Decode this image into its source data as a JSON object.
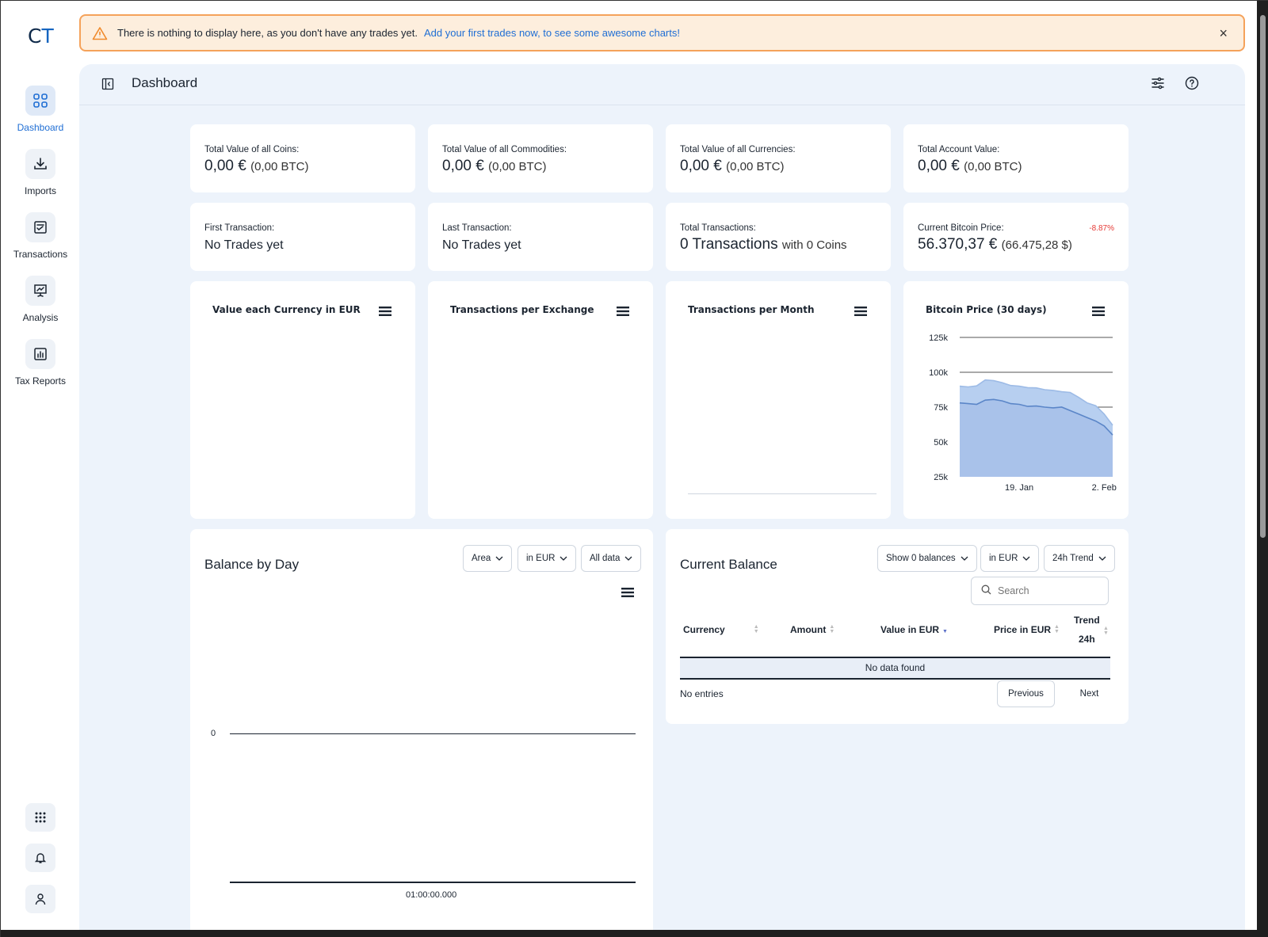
{
  "app": {
    "logo_c": "C",
    "logo_t": "T"
  },
  "sidebar": {
    "items": [
      {
        "label": "Dashboard",
        "icon": "grid-icon",
        "active": true
      },
      {
        "label": "Imports",
        "icon": "download-icon"
      },
      {
        "label": "Transactions",
        "icon": "clipboard-check-icon"
      },
      {
        "label": "Analysis",
        "icon": "presentation-chart-icon"
      },
      {
        "label": "Tax Reports",
        "icon": "bar-chart-icon"
      }
    ],
    "bottom": [
      "apps-grid-icon",
      "bell-icon",
      "user-icon"
    ]
  },
  "alert": {
    "message": "There is nothing to display here, as you don't have any trades yet.",
    "link": "Add your first trades now, to see some awesome charts!",
    "close": "×"
  },
  "header": {
    "title": "Dashboard"
  },
  "stats": [
    {
      "label": "Total Value of all Coins:",
      "value": "0,00 €",
      "sub": "(0,00 BTC)"
    },
    {
      "label": "Total Value of all Commodities:",
      "value": "0,00 €",
      "sub": "(0,00 BTC)"
    },
    {
      "label": "Total Value of all Currencies:",
      "value": "0,00 €",
      "sub": "(0,00 BTC)"
    },
    {
      "label": "Total Account Value:",
      "value": "0,00 €",
      "sub": "(0,00 BTC)"
    },
    {
      "label": "First Transaction:",
      "value": "No Trades yet",
      "sub": ""
    },
    {
      "label": "Last Transaction:",
      "value": "No Trades yet",
      "sub": ""
    },
    {
      "label": "Total Transactions:",
      "value": "0 Transactions",
      "sub": "with 0 Coins"
    },
    {
      "label": "Current Bitcoin Price:",
      "value": "56.370,37 €",
      "sub": "(66.475,28 $)",
      "change": "-8.87%"
    }
  ],
  "charts": {
    "currency": {
      "title": "Value each Currency in EUR"
    },
    "exchange": {
      "title": "Transactions per Exchange"
    },
    "month": {
      "title": "Transactions per Month"
    },
    "bitcoin": {
      "title": "Bitcoin Price (30 days)"
    }
  },
  "chart_data": {
    "type": "area",
    "title": "Bitcoin Price (30 days)",
    "y_ticks": [
      "125k",
      "100k",
      "75k",
      "50k",
      "25k"
    ],
    "x_ticks": [
      "19. Jan",
      "2. Feb"
    ],
    "ylim": [
      25000,
      125000
    ],
    "series": [
      {
        "values": [
          90000,
          89500,
          90200,
          94500,
          94000,
          92500,
          90500,
          90000,
          89000,
          88800,
          87500,
          87000,
          86000,
          85500,
          82000,
          78000,
          76000,
          70000,
          62000
        ]
      },
      {
        "values": [
          78000,
          77500,
          77000,
          80000,
          80500,
          79500,
          77500,
          77000,
          75500,
          75800,
          75000,
          74500,
          75000,
          72500,
          70000,
          67500,
          65000,
          61500,
          55000
        ]
      }
    ],
    "colors": [
      "#b7cff0",
      "#a9c2ea",
      "#5b86c8"
    ]
  },
  "balance_by_day": {
    "title": "Balance by Day",
    "dropdowns": [
      "Area",
      "in EUR",
      "All data"
    ],
    "y_label": "0",
    "x_label": "01:00:00.000"
  },
  "current_balance": {
    "title": "Current Balance",
    "dropdowns": [
      "Show 0 balances",
      "in EUR",
      "24h Trend"
    ],
    "search_placeholder": "Search",
    "columns": [
      "Currency",
      "Amount",
      "Value in EUR",
      "Price in EUR",
      "Trend",
      "24h"
    ],
    "empty": "No data found",
    "entries": "No entries",
    "prev": "Previous",
    "next": "Next"
  }
}
